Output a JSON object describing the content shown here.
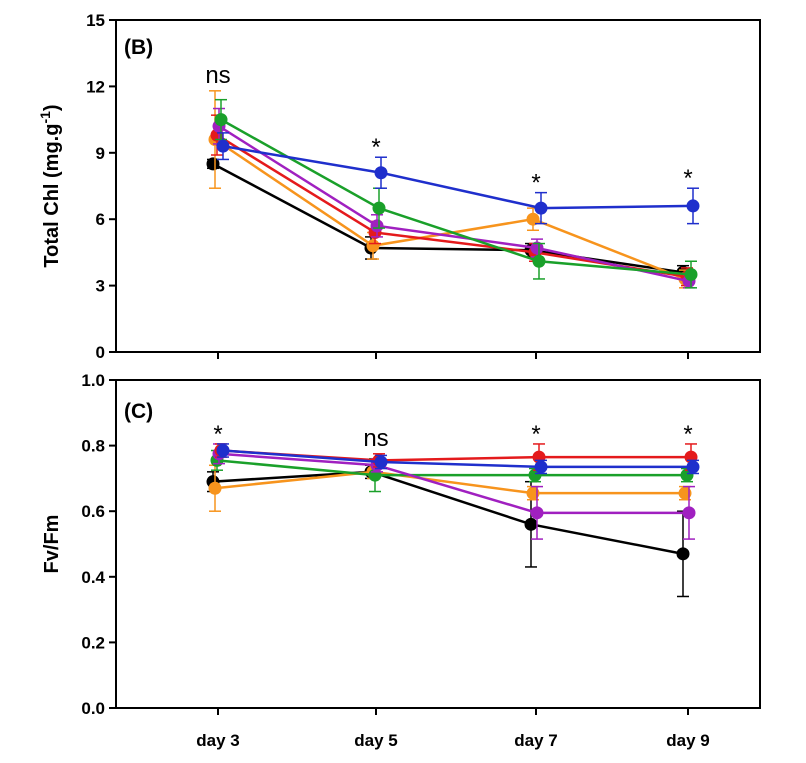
{
  "chart_data": [
    {
      "panel": "(B)",
      "type": "line",
      "categories": [
        "day 3",
        "day 5",
        "day 7",
        "day 9"
      ],
      "ylabel": "Total Chl  (mg.g",
      "ylabel_sup": "-1",
      "ylabel_end": ")",
      "ylim": [
        0,
        15
      ],
      "yticks": [
        0,
        3,
        6,
        9,
        12,
        15
      ],
      "ytick_labels": [
        "0",
        "3",
        "6",
        "9",
        "12",
        "15"
      ],
      "grid": false,
      "significance": [
        "ns",
        "*",
        "*",
        "*"
      ],
      "series": [
        {
          "color": "#000000",
          "values": [
            8.5,
            4.7,
            4.6,
            3.6
          ],
          "err": [
            0.2,
            0.5,
            0.3,
            0.3
          ]
        },
        {
          "color": "#f7941d",
          "values": [
            9.6,
            4.8,
            6.0,
            3.3
          ],
          "err": [
            2.2,
            0.6,
            0.5,
            0.4
          ]
        },
        {
          "color": "#e41a1c",
          "values": [
            9.8,
            5.4,
            4.5,
            3.4
          ],
          "err": [
            0.9,
            0.5,
            0.4,
            0.4
          ]
        },
        {
          "color": "#a020c0",
          "values": [
            10.2,
            5.7,
            4.7,
            3.2
          ],
          "err": [
            0.8,
            0.5,
            0.4,
            0.3
          ]
        },
        {
          "color": "#1aa02a",
          "values": [
            10.5,
            6.5,
            4.1,
            3.5
          ],
          "err": [
            0.9,
            0.9,
            0.8,
            0.6
          ]
        },
        {
          "color": "#1f2fcc",
          "values": [
            9.3,
            8.1,
            6.5,
            6.6
          ],
          "err": [
            0.6,
            0.7,
            0.7,
            0.8
          ]
        }
      ]
    },
    {
      "panel": "(C)",
      "type": "line",
      "categories": [
        "day 3",
        "day 5",
        "day 7",
        "day 9"
      ],
      "ylabel": "Fv/Fm",
      "ylim": [
        0,
        1.0
      ],
      "yticks": [
        0,
        0.2,
        0.4,
        0.6,
        0.8,
        1.0
      ],
      "ytick_labels": [
        "0.0",
        "0.2",
        "0.4",
        "0.6",
        "0.8",
        "1.0"
      ],
      "grid": false,
      "significance": [
        "*",
        "ns",
        "*",
        "*"
      ],
      "series": [
        {
          "color": "#000000",
          "values": [
            0.69,
            0.72,
            0.56,
            0.47
          ],
          "err": [
            0.03,
            0.02,
            0.13,
            0.13
          ]
        },
        {
          "color": "#f7941d",
          "values": [
            0.67,
            0.72,
            0.655,
            0.655
          ],
          "err": [
            0.07,
            0.02,
            0.02,
            0.02
          ]
        },
        {
          "color": "#1aa02a",
          "values": [
            0.755,
            0.71,
            0.71,
            0.71
          ],
          "err": [
            0.03,
            0.05,
            0.02,
            0.02
          ]
        },
        {
          "color": "#a020c0",
          "values": [
            0.775,
            0.74,
            0.595,
            0.595
          ],
          "err": [
            0.03,
            0.02,
            0.08,
            0.08
          ]
        },
        {
          "color": "#e41a1c",
          "values": [
            0.785,
            0.755,
            0.765,
            0.765
          ],
          "err": [
            0.02,
            0.02,
            0.04,
            0.04
          ]
        },
        {
          "color": "#1f2fcc",
          "values": [
            0.785,
            0.75,
            0.735,
            0.735
          ],
          "err": [
            0.02,
            0.02,
            0.02,
            0.02
          ]
        }
      ]
    }
  ]
}
